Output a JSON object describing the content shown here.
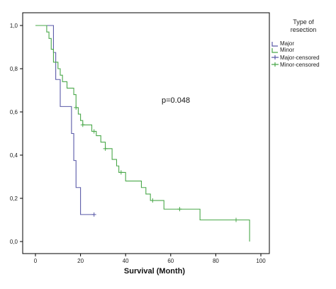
{
  "chart_data": {
    "type": "line",
    "title": "",
    "xlabel": "Survival (Month)",
    "ylabel": "",
    "xlim": [
      0,
      100
    ],
    "ylim": [
      0.0,
      1.0
    ],
    "x_ticks": [
      "0",
      "20",
      "40",
      "60",
      "80",
      "100"
    ],
    "y_ticks": [
      "0,0",
      "0,2",
      "0,4",
      "0,6",
      "0,8",
      "1,0"
    ],
    "grid": false,
    "legend": {
      "title_line1": "Type of",
      "title_line2": "resection",
      "placement": "right",
      "entries": [
        "Major",
        "Minor",
        "Major-censored",
        "Minor-censored"
      ]
    },
    "annotation": "p=0.048",
    "colors": {
      "major": "#5a5aa8",
      "minor": "#4aa84a"
    },
    "series": [
      {
        "name": "Major",
        "steps": [
          [
            0,
            1.0
          ],
          [
            8,
            0.875
          ],
          [
            9,
            0.75
          ],
          [
            11,
            0.625
          ],
          [
            16,
            0.5
          ],
          [
            17,
            0.375
          ],
          [
            18,
            0.25
          ],
          [
            20,
            0.125
          ],
          [
            26,
            0.125
          ]
        ],
        "censored": [
          [
            26,
            0.125
          ]
        ]
      },
      {
        "name": "Minor",
        "steps": [
          [
            0,
            1.0
          ],
          [
            5,
            0.97
          ],
          [
            6,
            0.94
          ],
          [
            7,
            0.89
          ],
          [
            8,
            0.83
          ],
          [
            10,
            0.8
          ],
          [
            11,
            0.77
          ],
          [
            12,
            0.74
          ],
          [
            14,
            0.71
          ],
          [
            17,
            0.68
          ],
          [
            18,
            0.62
          ],
          [
            19,
            0.59
          ],
          [
            20,
            0.56
          ],
          [
            21,
            0.54
          ],
          [
            25,
            0.51
          ],
          [
            27,
            0.49
          ],
          [
            29,
            0.46
          ],
          [
            31,
            0.43
          ],
          [
            34,
            0.38
          ],
          [
            36,
            0.35
          ],
          [
            37,
            0.32
          ],
          [
            40,
            0.28
          ],
          [
            47,
            0.25
          ],
          [
            49,
            0.22
          ],
          [
            51,
            0.19
          ],
          [
            57,
            0.15
          ],
          [
            73,
            0.1
          ],
          [
            95,
            0.0
          ]
        ],
        "censored": [
          [
            18,
            0.62
          ],
          [
            21,
            0.54
          ],
          [
            26,
            0.51
          ],
          [
            31,
            0.43
          ],
          [
            38,
            0.32
          ],
          [
            52,
            0.19
          ],
          [
            64,
            0.15
          ],
          [
            89,
            0.1
          ]
        ]
      }
    ]
  }
}
